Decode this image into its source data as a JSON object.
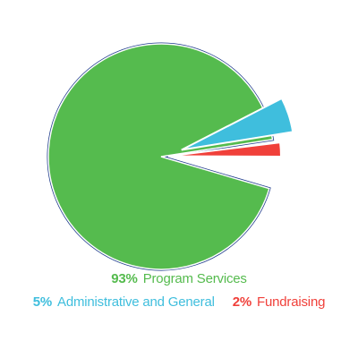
{
  "chart_data": {
    "type": "pie",
    "title": "",
    "slices": [
      {
        "label": "Program Services",
        "percent_label": "93%",
        "value": 93,
        "color": "#55bb4e",
        "exploded": false
      },
      {
        "label": "Fundraising",
        "percent_label": "2%",
        "value": 2,
        "color": "#f0403a",
        "exploded": true
      },
      {
        "label": "Administrative and General",
        "percent_label": "5%",
        "value": 5,
        "color": "#3fbedd",
        "exploded": true
      }
    ],
    "outline_color": "#1c3a8a",
    "legend_placement": "bottom"
  },
  "legend": {
    "rows": [
      [
        {
          "percent": "93%",
          "label": "Program Services",
          "color": "#55bb4e"
        }
      ],
      [
        {
          "percent": "5%",
          "label": "Administrative and General",
          "color": "#3fbedd"
        },
        {
          "percent": "2%",
          "label": "Fundraising",
          "color": "#f0403a"
        }
      ]
    ]
  }
}
